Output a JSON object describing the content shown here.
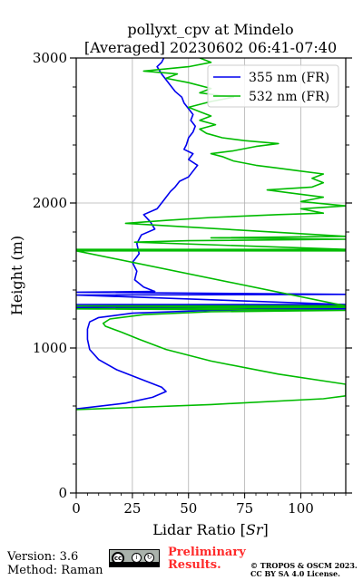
{
  "figure": {
    "title_line1": "pollyxt_cpv at Mindelo",
    "title_line2": "[Averaged] 20230602 06:41-07:40"
  },
  "chart_data": {
    "type": "line",
    "title": "pollyxt_cpv at Mindelo [Averaged] 20230602 06:41-07:40",
    "xlabel": "Lidar Ratio [",
    "xlabel_math": "Sr",
    "xlabel_close": "]",
    "ylabel": "Height (m)",
    "xlim": [
      0,
      120
    ],
    "ylim": [
      0,
      3000
    ],
    "xticks": [
      0,
      25,
      50,
      75,
      100
    ],
    "xtick_labels": [
      "0",
      "25",
      "50",
      "75",
      "100"
    ],
    "yticks": [
      0,
      1000,
      2000,
      3000
    ],
    "ytick_labels": [
      "0",
      "1000",
      "2000",
      "3000"
    ],
    "grid": true,
    "legend_position": "top-right",
    "series": [
      {
        "name": "355 nm (FR)",
        "color": "#0000ee",
        "points": [
          [
            0,
            580
          ],
          [
            22,
            620
          ],
          [
            34,
            660
          ],
          [
            40,
            700
          ],
          [
            38,
            730
          ],
          [
            28,
            790
          ],
          [
            18,
            850
          ],
          [
            10,
            920
          ],
          [
            6,
            990
          ],
          [
            5,
            1060
          ],
          [
            5,
            1130
          ],
          [
            6,
            1180
          ],
          [
            10,
            1210
          ],
          [
            25,
            1240
          ],
          [
            60,
            1260
          ],
          [
            120,
            1270
          ],
          [
            0,
            1280
          ],
          [
            120,
            1290
          ],
          [
            0,
            1300
          ],
          [
            120,
            1300
          ],
          [
            0,
            1365
          ],
          [
            120,
            1370
          ],
          [
            0,
            1385
          ],
          [
            35,
            1390
          ],
          [
            30,
            1420
          ],
          [
            26,
            1470
          ],
          [
            27,
            1530
          ],
          [
            25,
            1590
          ],
          [
            28,
            1650
          ],
          [
            27,
            1720
          ],
          [
            29,
            1780
          ],
          [
            35,
            1820
          ],
          [
            33,
            1870
          ],
          [
            30,
            1920
          ],
          [
            36,
            1960
          ],
          [
            38,
            2000
          ],
          [
            40,
            2040
          ],
          [
            42,
            2080
          ],
          [
            44,
            2110
          ],
          [
            46,
            2150
          ],
          [
            50,
            2180
          ],
          [
            52,
            2220
          ],
          [
            54,
            2260
          ],
          [
            50,
            2300
          ],
          [
            52,
            2340
          ],
          [
            48,
            2370
          ],
          [
            49,
            2400
          ],
          [
            50,
            2450
          ],
          [
            52,
            2490
          ],
          [
            53,
            2530
          ],
          [
            51,
            2570
          ],
          [
            52,
            2610
          ],
          [
            50,
            2650
          ],
          [
            48,
            2690
          ],
          [
            47,
            2730
          ],
          [
            44,
            2770
          ],
          [
            42,
            2810
          ],
          [
            40,
            2850
          ],
          [
            38,
            2890
          ],
          [
            36,
            2940
          ],
          [
            38,
            2970
          ],
          [
            39,
            3000
          ]
        ]
      },
      {
        "name": "532 nm (FR)",
        "color": "#00bb00",
        "points": [
          [
            0,
            575
          ],
          [
            60,
            610
          ],
          [
            110,
            650
          ],
          [
            120,
            670
          ],
          [
            120,
            750
          ],
          [
            90,
            820
          ],
          [
            60,
            910
          ],
          [
            40,
            990
          ],
          [
            28,
            1060
          ],
          [
            20,
            1110
          ],
          [
            13,
            1150
          ],
          [
            12,
            1170
          ],
          [
            15,
            1200
          ],
          [
            30,
            1230
          ],
          [
            60,
            1250
          ],
          [
            120,
            1260
          ],
          [
            0,
            1270
          ],
          [
            120,
            1280
          ],
          [
            0,
            1290
          ],
          [
            120,
            1290
          ],
          [
            0,
            1670
          ],
          [
            120,
            1670
          ],
          [
            0,
            1680
          ],
          [
            120,
            1680
          ],
          [
            26,
            1730
          ],
          [
            50,
            1740
          ],
          [
            120,
            1750
          ],
          [
            60,
            1760
          ],
          [
            120,
            1770
          ],
          [
            22,
            1860
          ],
          [
            40,
            1880
          ],
          [
            60,
            1900
          ],
          [
            90,
            1920
          ],
          [
            110,
            1930
          ],
          [
            100,
            1960
          ],
          [
            120,
            1980
          ],
          [
            100,
            2010
          ],
          [
            110,
            2040
          ],
          [
            95,
            2070
          ],
          [
            85,
            2090
          ],
          [
            105,
            2110
          ],
          [
            110,
            2140
          ],
          [
            105,
            2170
          ],
          [
            110,
            2200
          ],
          [
            100,
            2220
          ],
          [
            90,
            2240
          ],
          [
            80,
            2260
          ],
          [
            70,
            2290
          ],
          [
            65,
            2320
          ],
          [
            60,
            2340
          ],
          [
            70,
            2360
          ],
          [
            80,
            2390
          ],
          [
            90,
            2410
          ],
          [
            75,
            2430
          ],
          [
            65,
            2450
          ],
          [
            58,
            2480
          ],
          [
            55,
            2510
          ],
          [
            62,
            2540
          ],
          [
            55,
            2570
          ],
          [
            60,
            2600
          ],
          [
            55,
            2630
          ],
          [
            50,
            2660
          ],
          [
            60,
            2700
          ],
          [
            70,
            2730
          ],
          [
            55,
            2760
          ],
          [
            60,
            2790
          ],
          [
            50,
            2830
          ],
          [
            40,
            2860
          ],
          [
            45,
            2890
          ],
          [
            30,
            2910
          ],
          [
            50,
            2940
          ],
          [
            60,
            2970
          ],
          [
            55,
            3000
          ]
        ]
      }
    ]
  },
  "footer": {
    "version": "Version: 3.6",
    "method": "Method: Raman",
    "prelim_line1": "Preliminary",
    "prelim_line2": "Results.",
    "copyright_line1": "© TROPOS & OSCM 2023.",
    "copyright_line2": "CC BY SA 4.0 License.",
    "license_icon": "cc-by-sa-icon",
    "license_cc": "cc",
    "license_by": "BY",
    "license_sa": "SA"
  }
}
